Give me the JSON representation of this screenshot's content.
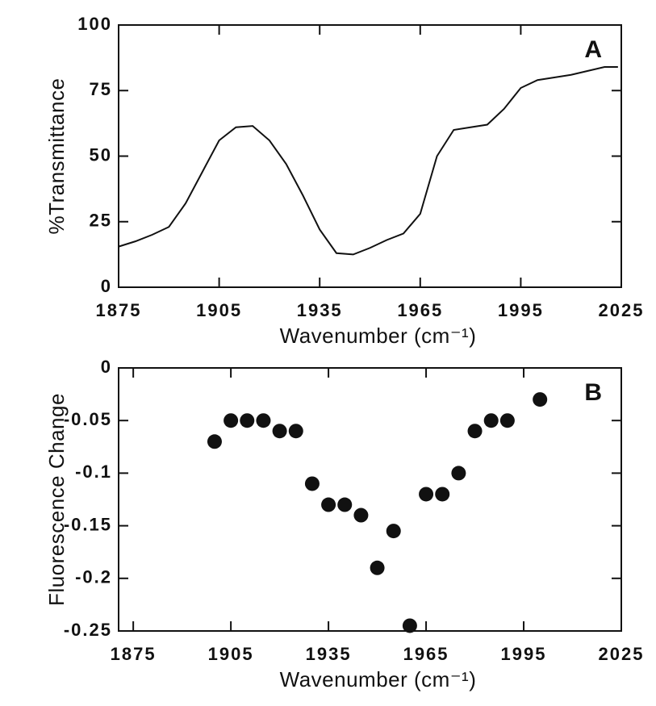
{
  "chart_data": [
    {
      "type": "line",
      "xlabel": "Wavenumber (cm⁻¹)",
      "ylabel": "%Transmittance",
      "annotation": "A",
      "x": [
        1875,
        1880,
        1885,
        1890,
        1895,
        1900,
        1905,
        1910,
        1915,
        1920,
        1925,
        1930,
        1935,
        1940,
        1945,
        1950,
        1955,
        1960,
        1965,
        1970,
        1975,
        1980,
        1985,
        1990,
        1995,
        2000,
        2005,
        2010,
        2015,
        2020,
        2024
      ],
      "series": [
        {
          "name": "%Transmittance",
          "color": "#111111",
          "values": [
            15.5,
            17.5,
            20,
            23,
            32,
            44,
            56,
            61,
            61.5,
            56,
            47,
            35,
            22,
            13,
            12.5,
            15,
            18,
            20.5,
            28,
            50,
            60,
            61,
            62,
            68,
            76,
            79,
            80,
            81,
            82.5,
            84,
            84
          ]
        }
      ],
      "xlim": [
        1875,
        2025
      ],
      "xticks": [
        1875,
        1905,
        1935,
        1965,
        1995,
        2025
      ],
      "ylim": [
        0,
        100
      ],
      "yticks": [
        0,
        25,
        50,
        75,
        100
      ]
    },
    {
      "type": "scatter",
      "xlabel": "Wavenumber (cm⁻¹)",
      "ylabel": "Fluorescence Change",
      "annotation": "B",
      "x": [
        1900,
        1905,
        1910,
        1915,
        1920,
        1925,
        1930,
        1935,
        1940,
        1945,
        1950,
        1955,
        1960,
        1965,
        1970,
        1975,
        1980,
        1985,
        1990,
        2000
      ],
      "series": [
        {
          "name": "Fluorescence Change",
          "color": "#111111",
          "values": [
            -0.07,
            -0.05,
            -0.05,
            -0.05,
            -0.06,
            -0.06,
            -0.11,
            -0.13,
            -0.13,
            -0.14,
            -0.19,
            -0.155,
            -0.245,
            -0.12,
            -0.12,
            -0.1,
            -0.06,
            -0.05,
            -0.05,
            -0.03
          ]
        }
      ],
      "xlim": [
        1870.5,
        2025
      ],
      "xticks": [
        1875,
        1905,
        1935,
        1965,
        1995,
        2025
      ],
      "ylim": [
        -0.25,
        0
      ],
      "yticks": [
        -0.25,
        -0.2,
        -0.15,
        -0.1,
        -0.05,
        0
      ]
    }
  ]
}
